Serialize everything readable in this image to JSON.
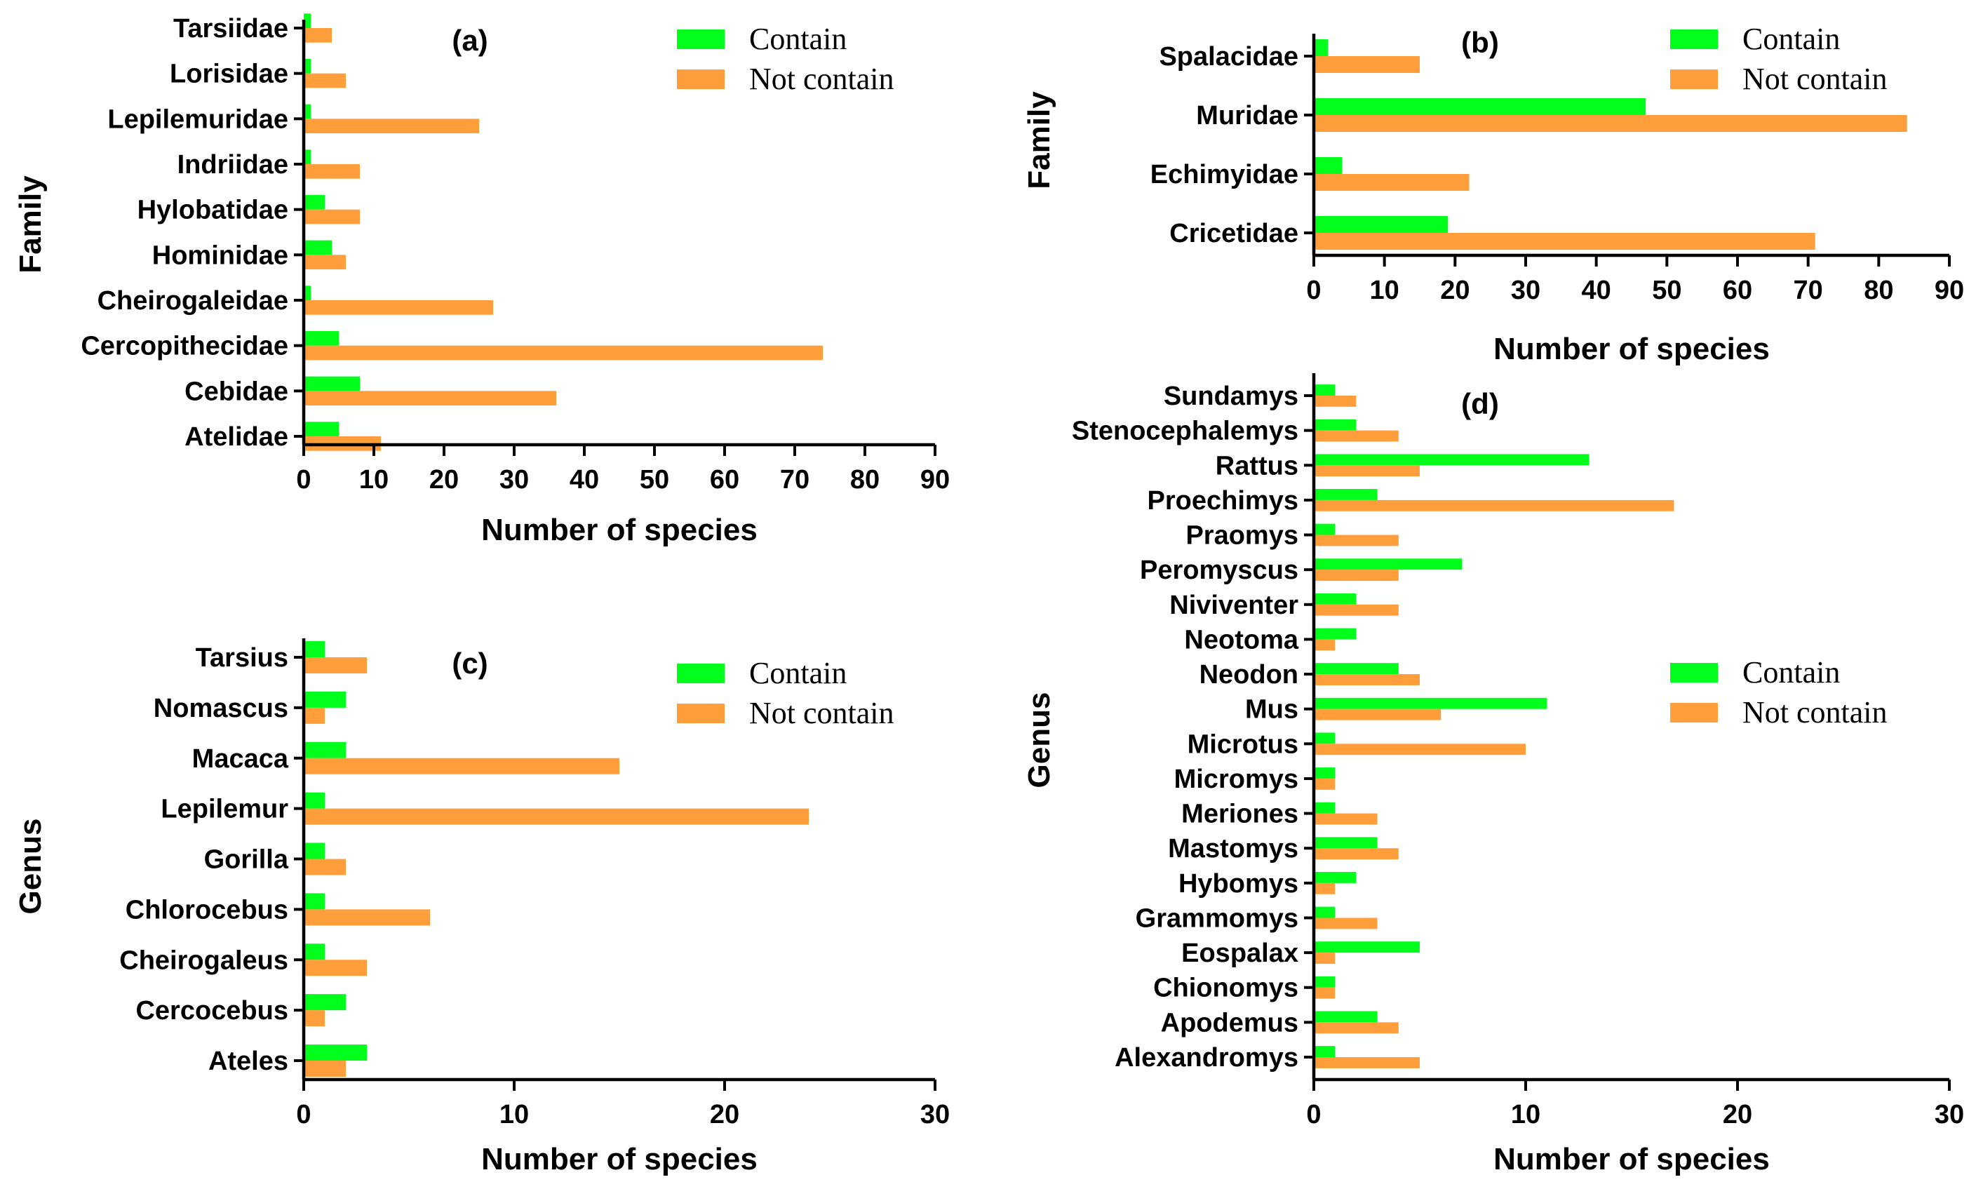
{
  "colors": {
    "contain": "#00ff1a",
    "not_contain": "#ff9e3a"
  },
  "chart_data": [
    {
      "type": "bar",
      "orientation": "horizontal",
      "panel": "(a)",
      "ylabel": "Family",
      "xlabel": "Number of species",
      "xlim": [
        0,
        90
      ],
      "xticks": [
        "0",
        "10",
        "20",
        "30",
        "40",
        "50",
        "60",
        "70",
        "80",
        "90"
      ],
      "categories": [
        "Tarsiidae",
        "Lorisidae",
        "Lepilemuridae",
        "Indriidae",
        "Hylobatidae",
        "Hominidae",
        "Cheirogaleidae",
        "Cercopithecidae",
        "Cebidae",
        "Atelidae"
      ],
      "series": [
        {
          "name": "Contain",
          "values": [
            1,
            1,
            1,
            1,
            3,
            4,
            1,
            5,
            8,
            5
          ]
        },
        {
          "name": "Not contain",
          "values": [
            4,
            6,
            25,
            8,
            8,
            6,
            27,
            74,
            36,
            11
          ]
        }
      ],
      "legend_position": "top-right"
    },
    {
      "type": "bar",
      "orientation": "horizontal",
      "panel": "(b)",
      "ylabel": "Family",
      "xlabel": "Number of species",
      "xlim": [
        0,
        90
      ],
      "xticks": [
        "0",
        "10",
        "20",
        "30",
        "40",
        "50",
        "60",
        "70",
        "80",
        "90"
      ],
      "categories": [
        "Spalacidae",
        "Muridae",
        "Echimyidae",
        "Cricetidae"
      ],
      "series": [
        {
          "name": "Contain",
          "values": [
            2,
            47,
            4,
            19
          ]
        },
        {
          "name": "Not contain",
          "values": [
            15,
            84,
            22,
            71
          ]
        }
      ],
      "legend_position": "top-right"
    },
    {
      "type": "bar",
      "orientation": "horizontal",
      "panel": "(c)",
      "ylabel": "Genus",
      "xlabel": "Number of species",
      "xlim": [
        0,
        30
      ],
      "xticks": [
        "0",
        "10",
        "20",
        "30"
      ],
      "categories": [
        "Tarsius",
        "Nomascus",
        "Macaca",
        "Lepilemur",
        "Gorilla",
        "Chlorocebus",
        "Cheirogaleus",
        "Cercocebus",
        "Ateles"
      ],
      "series": [
        {
          "name": "Contain",
          "values": [
            1,
            2,
            2,
            1,
            1,
            1,
            1,
            2,
            3
          ]
        },
        {
          "name": "Not contain",
          "values": [
            3,
            1,
            15,
            24,
            2,
            6,
            3,
            1,
            2
          ]
        }
      ],
      "legend_position": "top-right"
    },
    {
      "type": "bar",
      "orientation": "horizontal",
      "panel": "(d)",
      "ylabel": "Genus",
      "xlabel": "Number of species",
      "xlim": [
        0,
        30
      ],
      "xticks": [
        "0",
        "10",
        "20",
        "30"
      ],
      "categories": [
        "Sundamys",
        "Stenocephalemys",
        "Rattus",
        "Proechimys",
        "Praomys",
        "Peromyscus",
        "Niviventer",
        "Neotoma",
        "Neodon",
        "Mus",
        "Microtus",
        "Micromys",
        "Meriones",
        "Mastomys",
        "Hybomys",
        "Grammomys",
        "Eospalax",
        "Chionomys",
        "Apodemus",
        "Alexandromys"
      ],
      "series": [
        {
          "name": "Contain",
          "values": [
            1,
            2,
            13,
            3,
            1,
            7,
            2,
            2,
            4,
            11,
            1,
            1,
            1,
            3,
            2,
            1,
            5,
            1,
            3,
            1
          ]
        },
        {
          "name": "Not contain",
          "values": [
            2,
            4,
            5,
            17,
            4,
            4,
            4,
            1,
            5,
            6,
            10,
            1,
            3,
            4,
            1,
            3,
            1,
            1,
            4,
            5
          ]
        }
      ],
      "legend_position": "right"
    }
  ]
}
